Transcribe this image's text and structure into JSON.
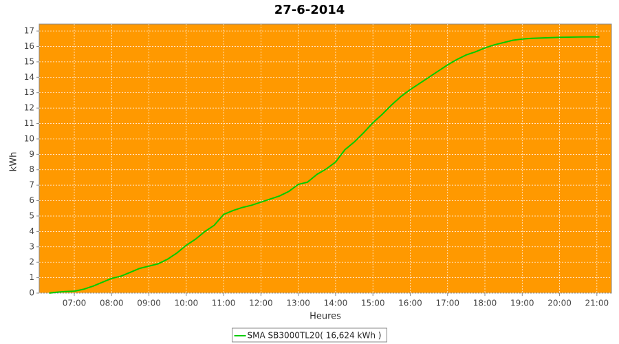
{
  "chart_data": {
    "type": "line",
    "title": "27-6-2014",
    "x_label": "Heures",
    "y_label": "kWh",
    "plot_background": "#ff9900",
    "grid": true,
    "legend": "bottom",
    "xlim": [
      6.06,
      21.39
    ],
    "ylim": [
      0,
      17.45
    ],
    "xticks": [
      {
        "value": 7,
        "label": "07:00"
      },
      {
        "value": 8,
        "label": "08:00"
      },
      {
        "value": 9,
        "label": "09:00"
      },
      {
        "value": 10,
        "label": "10:00"
      },
      {
        "value": 11,
        "label": "11:00"
      },
      {
        "value": 12,
        "label": "12:00"
      },
      {
        "value": 13,
        "label": "13:00"
      },
      {
        "value": 14,
        "label": "14:00"
      },
      {
        "value": 15,
        "label": "15:00"
      },
      {
        "value": 16,
        "label": "16:00"
      },
      {
        "value": 17,
        "label": "17:00"
      },
      {
        "value": 18,
        "label": "18:00"
      },
      {
        "value": 19,
        "label": "19:00"
      },
      {
        "value": 20,
        "label": "20:00"
      },
      {
        "value": 21,
        "label": "21:00"
      }
    ],
    "yticks": [
      0,
      1,
      2,
      3,
      4,
      5,
      6,
      7,
      8,
      9,
      10,
      11,
      12,
      13,
      14,
      15,
      16,
      17
    ],
    "x": [
      6.33,
      6.5,
      6.75,
      7.0,
      7.25,
      7.5,
      7.75,
      8.0,
      8.25,
      8.5,
      8.75,
      9.0,
      9.25,
      9.5,
      9.75,
      10.0,
      10.25,
      10.5,
      10.75,
      11.0,
      11.25,
      11.5,
      11.75,
      12.0,
      12.25,
      12.5,
      12.75,
      13.0,
      13.25,
      13.5,
      13.75,
      14.0,
      14.25,
      14.5,
      14.75,
      15.0,
      15.25,
      15.5,
      15.75,
      16.0,
      16.25,
      16.5,
      16.75,
      17.0,
      17.25,
      17.5,
      17.75,
      18.0,
      18.25,
      18.5,
      18.75,
      19.0,
      19.25,
      19.5,
      19.75,
      20.0,
      20.25,
      20.5,
      20.75,
      21.07
    ],
    "series": [
      {
        "name": "SMA SB3000TL20( 16,624 kWh )",
        "color": "#00cc00",
        "values": [
          0,
          0.05,
          0.1,
          0.12,
          0.25,
          0.45,
          0.7,
          0.95,
          1.1,
          1.35,
          1.6,
          1.75,
          1.9,
          2.2,
          2.6,
          3.1,
          3.5,
          4.0,
          4.4,
          5.1,
          5.35,
          5.55,
          5.7,
          5.9,
          6.1,
          6.3,
          6.6,
          7.05,
          7.2,
          7.7,
          8.05,
          8.5,
          9.3,
          9.8,
          10.4,
          11.05,
          11.6,
          12.2,
          12.75,
          13.2,
          13.6,
          14.0,
          14.4,
          14.8,
          15.15,
          15.45,
          15.65,
          15.9,
          16.1,
          16.25,
          16.4,
          16.48,
          16.52,
          16.55,
          16.57,
          16.59,
          16.6,
          16.61,
          16.62,
          16.62
        ]
      }
    ]
  }
}
